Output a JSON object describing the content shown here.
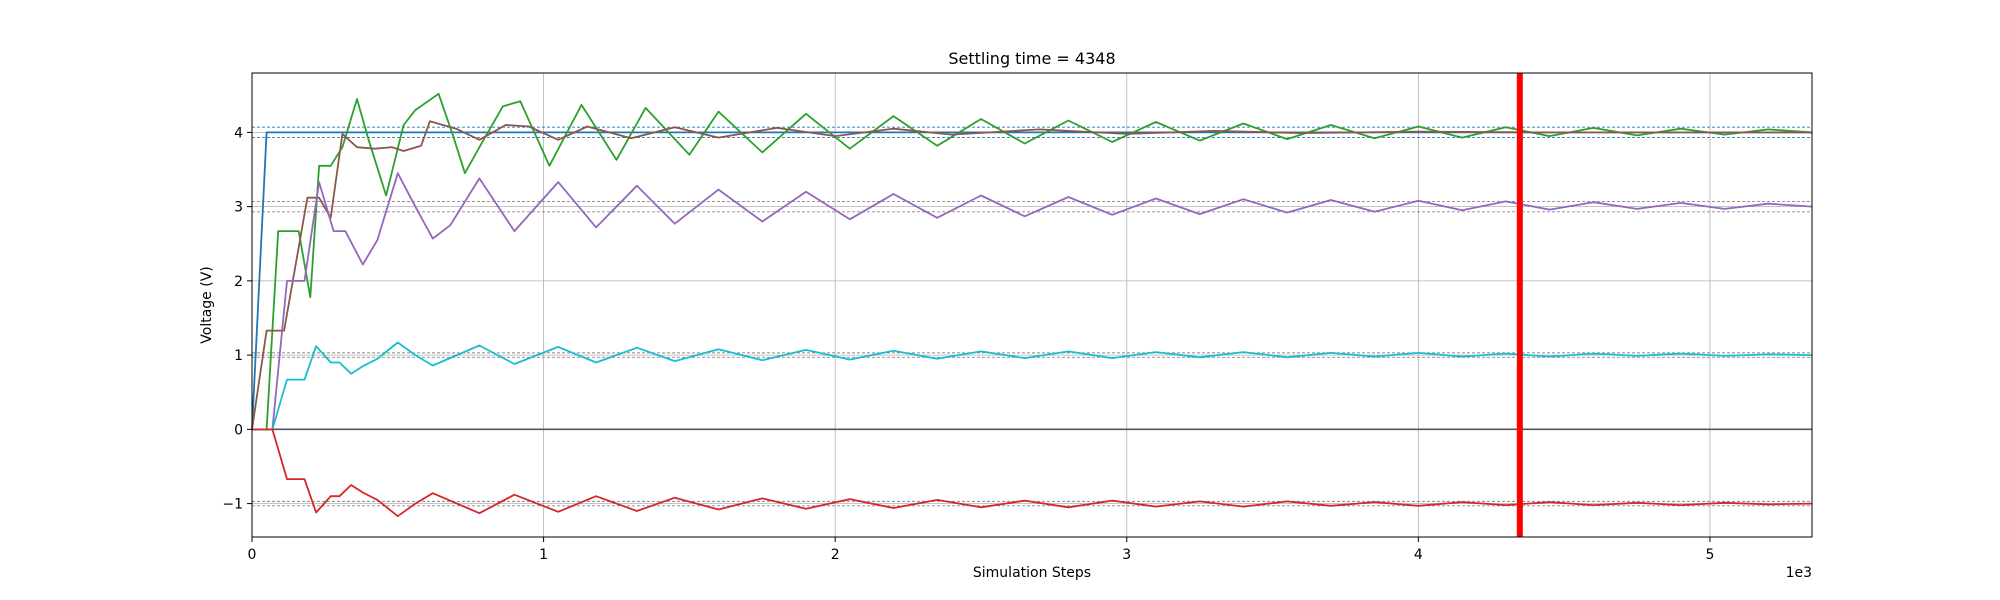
{
  "chart_data": {
    "type": "line",
    "title": "Settling time = 4348",
    "xlabel": "Simulation Steps",
    "ylabel": "Voltage (V)",
    "x_scale_label": "1e3",
    "xlim": [
      0,
      5350
    ],
    "ylim": [
      -1.45,
      4.8
    ],
    "x_ticks": [
      0,
      1000,
      2000,
      3000,
      4000,
      5000
    ],
    "x_tick_labels": [
      "0",
      "1",
      "2",
      "3",
      "4",
      "5"
    ],
    "y_ticks": [
      -1,
      0,
      1,
      2,
      3,
      4
    ],
    "y_tick_labels": [
      "−1",
      "0",
      "1",
      "2",
      "3",
      "4"
    ],
    "grid": true,
    "settling_marker": {
      "x": 4348,
      "color": "#ff0000"
    },
    "zero_line": {
      "y": 0,
      "color": "#555555"
    },
    "tolerance_bands": [
      {
        "center": 4,
        "halfwidth": 0.07,
        "color": "#1f77b4"
      },
      {
        "center": 3,
        "halfwidth": 0.07,
        "color": "#888888"
      },
      {
        "center": 1,
        "halfwidth": 0.03,
        "color": "#888888"
      },
      {
        "center": -1,
        "halfwidth": 0.03,
        "color": "#888888"
      }
    ],
    "series": [
      {
        "color": "#1f77b4",
        "x": [
          0,
          50,
          5350
        ],
        "y": [
          0,
          4.0,
          4.0
        ]
      },
      {
        "color": "#2ca02c",
        "x": [
          0,
          50,
          90,
          160,
          200,
          230,
          270,
          310,
          360,
          400,
          460,
          520,
          560,
          640,
          690,
          730,
          780,
          860,
          920,
          1020,
          1130,
          1250,
          1350,
          1500,
          1600,
          1750,
          1900,
          2050,
          2200,
          2350,
          2500,
          2650,
          2800,
          2950,
          3100,
          3250,
          3400,
          3550,
          3700,
          3850,
          4000,
          4150,
          4300,
          4450,
          4600,
          4750,
          4900,
          5050,
          5200,
          5350
        ],
        "y": [
          0,
          0,
          2.67,
          2.67,
          1.78,
          3.55,
          3.55,
          3.8,
          4.45,
          3.9,
          3.15,
          4.1,
          4.3,
          4.52,
          3.95,
          3.45,
          3.8,
          4.35,
          4.42,
          3.55,
          4.37,
          3.63,
          4.33,
          3.7,
          4.28,
          3.73,
          4.25,
          3.78,
          4.22,
          3.82,
          4.18,
          3.85,
          4.16,
          3.87,
          4.14,
          3.89,
          4.12,
          3.91,
          4.1,
          3.92,
          4.08,
          3.93,
          4.07,
          3.95,
          4.06,
          3.96,
          4.05,
          3.97,
          4.04,
          4.0
        ]
      },
      {
        "color": "#8c564b",
        "x": [
          0,
          50,
          110,
          190,
          230,
          270,
          310,
          360,
          420,
          480,
          520,
          580,
          610,
          700,
          780,
          870,
          950,
          1050,
          1150,
          1300,
          1450,
          1600,
          1800,
          2000,
          2200,
          2400,
          2700,
          3000,
          3300,
          3600,
          4000,
          4400,
          4800,
          5350
        ],
        "y": [
          0,
          1.33,
          1.33,
          3.12,
          3.12,
          2.85,
          3.98,
          3.8,
          3.78,
          3.8,
          3.75,
          3.82,
          4.15,
          4.05,
          3.9,
          4.1,
          4.08,
          3.9,
          4.08,
          3.92,
          4.07,
          3.93,
          4.06,
          3.95,
          4.05,
          3.97,
          4.04,
          3.98,
          4.02,
          3.99,
          4.01,
          4.0,
          4.0,
          4.0
        ]
      },
      {
        "color": "#9467bd",
        "x": [
          0,
          70,
          120,
          180,
          230,
          280,
          320,
          380,
          430,
          500,
          560,
          620,
          680,
          780,
          900,
          1050,
          1180,
          1320,
          1450,
          1600,
          1750,
          1900,
          2050,
          2200,
          2350,
          2500,
          2650,
          2800,
          2950,
          3100,
          3250,
          3400,
          3550,
          3700,
          3850,
          4000,
          4150,
          4300,
          4450,
          4600,
          4750,
          4900,
          5050,
          5200,
          5350
        ],
        "y": [
          0,
          0,
          2.0,
          2.0,
          3.33,
          2.67,
          2.67,
          2.22,
          2.55,
          3.45,
          3.0,
          2.57,
          2.75,
          3.38,
          2.67,
          3.33,
          2.72,
          3.28,
          2.77,
          3.23,
          2.8,
          3.2,
          2.83,
          3.17,
          2.85,
          3.15,
          2.87,
          3.13,
          2.89,
          3.11,
          2.9,
          3.1,
          2.92,
          3.09,
          2.93,
          3.08,
          2.95,
          3.07,
          2.96,
          3.06,
          2.97,
          3.05,
          2.97,
          3.04,
          3.0
        ]
      },
      {
        "color": "#17becf",
        "x": [
          0,
          70,
          120,
          180,
          220,
          270,
          300,
          340,
          380,
          430,
          500,
          560,
          620,
          780,
          900,
          1050,
          1180,
          1320,
          1450,
          1600,
          1750,
          1900,
          2050,
          2200,
          2350,
          2500,
          2650,
          2800,
          2950,
          3100,
          3250,
          3400,
          3550,
          3700,
          3850,
          4000,
          4150,
          4300,
          4450,
          4600,
          4750,
          4900,
          5050,
          5200,
          5350
        ],
        "y": [
          0,
          0,
          0.67,
          0.67,
          1.12,
          0.9,
          0.9,
          0.75,
          0.85,
          0.95,
          1.17,
          1.0,
          0.86,
          1.13,
          0.88,
          1.11,
          0.9,
          1.1,
          0.92,
          1.08,
          0.93,
          1.07,
          0.94,
          1.06,
          0.95,
          1.05,
          0.96,
          1.05,
          0.96,
          1.04,
          0.97,
          1.04,
          0.97,
          1.03,
          0.98,
          1.03,
          0.98,
          1.02,
          0.98,
          1.02,
          0.99,
          1.02,
          0.99,
          1.01,
          1.0
        ]
      },
      {
        "color": "#d62728",
        "x": [
          0,
          70,
          120,
          180,
          220,
          270,
          300,
          340,
          380,
          430,
          500,
          560,
          620,
          780,
          900,
          1050,
          1180,
          1320,
          1450,
          1600,
          1750,
          1900,
          2050,
          2200,
          2350,
          2500,
          2650,
          2800,
          2950,
          3100,
          3250,
          3400,
          3550,
          3700,
          3850,
          4000,
          4150,
          4300,
          4450,
          4600,
          4750,
          4900,
          5050,
          5200,
          5350
        ],
        "y": [
          0,
          0,
          -0.67,
          -0.67,
          -1.12,
          -0.9,
          -0.9,
          -0.75,
          -0.85,
          -0.95,
          -1.17,
          -1.0,
          -0.86,
          -1.13,
          -0.88,
          -1.11,
          -0.9,
          -1.1,
          -0.92,
          -1.08,
          -0.93,
          -1.07,
          -0.94,
          -1.06,
          -0.95,
          -1.05,
          -0.96,
          -1.05,
          -0.96,
          -1.04,
          -0.97,
          -1.04,
          -0.97,
          -1.03,
          -0.98,
          -1.03,
          -0.98,
          -1.02,
          -0.98,
          -1.02,
          -0.99,
          -1.02,
          -0.99,
          -1.01,
          -1.0
        ]
      }
    ]
  }
}
